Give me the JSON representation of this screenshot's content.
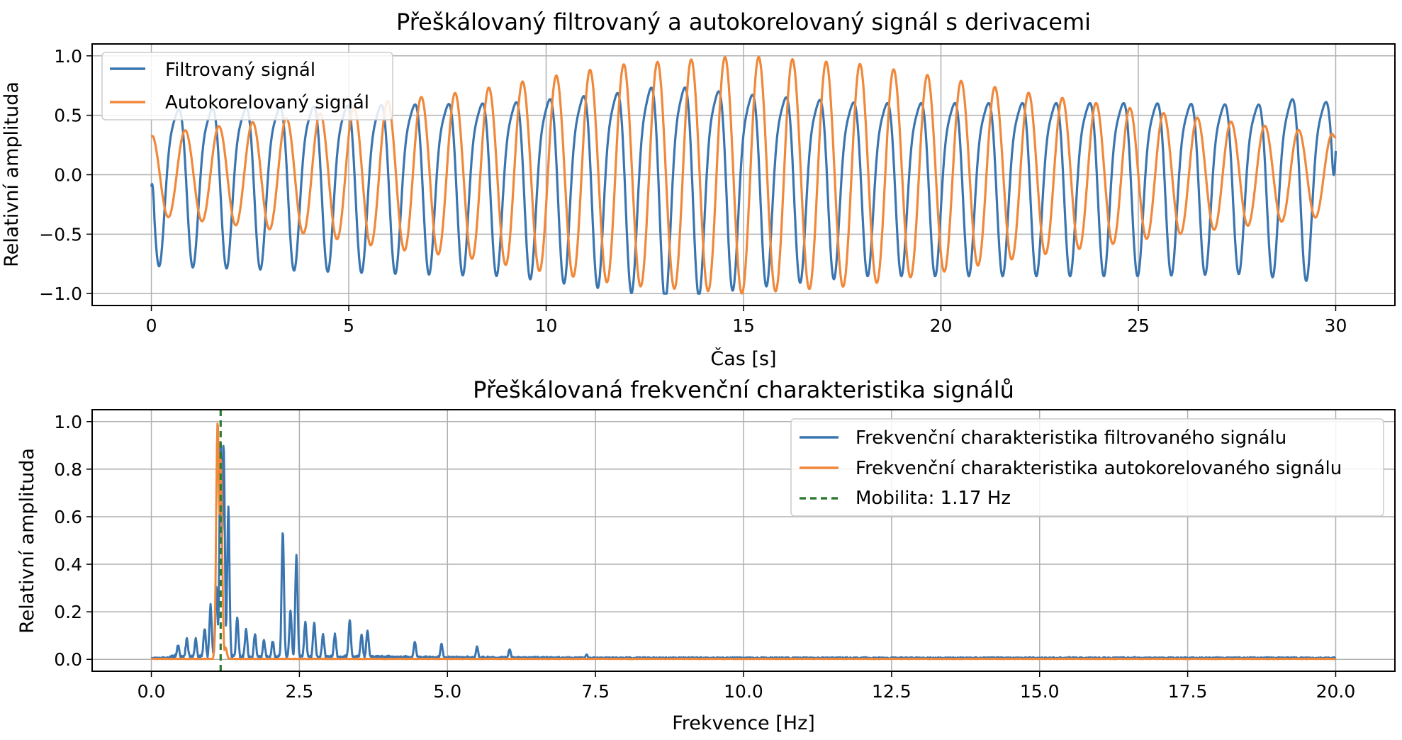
{
  "chart_data": [
    {
      "type": "line",
      "title": "Přeškálovaný filtrovaný a autokorelovaný signál s derivacemi",
      "xlabel": "Čas [s]",
      "ylabel": "Relativní amplituda",
      "xlim": [
        -1.5,
        31.5
      ],
      "ylim": [
        -1.1,
        1.1
      ],
      "xticks": [
        0,
        5,
        10,
        15,
        20,
        25,
        30
      ],
      "xtick_labels": [
        "0",
        "5",
        "10",
        "15",
        "20",
        "25",
        "30"
      ],
      "yticks": [
        -1.0,
        -0.5,
        0.0,
        0.5,
        1.0
      ],
      "ytick_labels": [
        "−1.0",
        "−0.5",
        "0.0",
        "0.5",
        "1.0"
      ],
      "grid": true,
      "legend_position": "upper-left",
      "series": [
        {
          "name": "Filtrovaný signál",
          "color": "#3a75b0",
          "kind": "oscillation",
          "x_range": [
            0,
            30
          ],
          "frequency_hz": 1.17,
          "phase": 1.6,
          "env": [
            [
              0,
              0.72
            ],
            [
              3,
              0.75
            ],
            [
              6,
              0.78
            ],
            [
              9,
              0.8
            ],
            [
              12,
              0.92
            ],
            [
              13,
              1.0
            ],
            [
              15,
              0.9
            ],
            [
              18,
              0.8
            ],
            [
              22,
              0.8
            ],
            [
              25,
              0.8
            ],
            [
              28,
              0.78
            ],
            [
              29,
              0.85
            ],
            [
              30,
              0.8
            ]
          ],
          "offset": 0.0,
          "harmonic": 0.22,
          "start_value": -0.1,
          "end_value": 0.2
        },
        {
          "name": "Autokorelovaný signál",
          "color": "#f0883a",
          "kind": "oscillation",
          "x_range": [
            0,
            30
          ],
          "frequency_hz": 1.17,
          "phase": 0.0,
          "env": [
            [
              0,
              0.34
            ],
            [
              2,
              0.42
            ],
            [
              4,
              0.5
            ],
            [
              6,
              0.62
            ],
            [
              8,
              0.7
            ],
            [
              10,
              0.82
            ],
            [
              12,
              0.93
            ],
            [
              15,
              1.0
            ],
            [
              18,
              0.93
            ],
            [
              20,
              0.82
            ],
            [
              22,
              0.7
            ],
            [
              24,
              0.6
            ],
            [
              26,
              0.5
            ],
            [
              28,
              0.42
            ],
            [
              30,
              0.34
            ]
          ],
          "offset": 0.0,
          "harmonic": 0.0,
          "start_value": 0.32,
          "end_value": 0.32
        }
      ]
    },
    {
      "type": "line",
      "title": "Přeškálovaná frekvenční charakteristika signálů",
      "xlabel": "Frekvence [Hz]",
      "ylabel": "Relativní amplituda",
      "xlim": [
        -1.0,
        21.0
      ],
      "ylim": [
        -0.05,
        1.05
      ],
      "xticks": [
        0,
        2.5,
        5,
        7.5,
        10,
        12.5,
        15,
        17.5,
        20
      ],
      "xtick_labels": [
        "0.0",
        "2.5",
        "5.0",
        "7.5",
        "10.0",
        "12.5",
        "15.0",
        "17.5",
        "20.0"
      ],
      "yticks": [
        0,
        0.2,
        0.4,
        0.6,
        0.8,
        1.0
      ],
      "ytick_labels": [
        "0.0",
        "0.2",
        "0.4",
        "0.6",
        "0.8",
        "1.0"
      ],
      "grid": true,
      "legend_position": "upper-right",
      "series": [
        {
          "name": "Frekvenční charakteristika filtrovaného signálu",
          "color": "#3a75b0",
          "kind": "spectrum",
          "x_range": [
            0,
            20
          ],
          "peaks": [
            [
              0.45,
              0.05
            ],
            [
              0.6,
              0.08
            ],
            [
              0.75,
              0.08
            ],
            [
              0.9,
              0.12
            ],
            [
              1.0,
              0.22
            ],
            [
              1.1,
              0.3
            ],
            [
              1.17,
              0.92
            ],
            [
              1.22,
              0.9
            ],
            [
              1.3,
              0.63
            ],
            [
              1.45,
              0.17
            ],
            [
              1.6,
              0.12
            ],
            [
              1.75,
              0.1
            ],
            [
              1.9,
              0.07
            ],
            [
              2.05,
              0.07
            ],
            [
              2.22,
              0.53
            ],
            [
              2.35,
              0.2
            ],
            [
              2.45,
              0.43
            ],
            [
              2.6,
              0.15
            ],
            [
              2.75,
              0.15
            ],
            [
              2.9,
              0.1
            ],
            [
              3.1,
              0.1
            ],
            [
              3.35,
              0.16
            ],
            [
              3.55,
              0.1
            ],
            [
              3.65,
              0.12
            ],
            [
              4.45,
              0.07
            ],
            [
              4.9,
              0.06
            ],
            [
              5.5,
              0.05
            ],
            [
              6.05,
              0.04
            ],
            [
              7.35,
              0.02
            ],
            [
              15.5,
              0.01
            ],
            [
              16.6,
              0.01
            ]
          ],
          "floor": 0.006
        },
        {
          "name": "Frekvenční charakteristika autokorelovaného signálu",
          "color": "#f0883a",
          "kind": "spectrum",
          "x_range": [
            0,
            20
          ],
          "peaks": [
            [
              1.12,
              1.0
            ],
            [
              1.17,
              0.85
            ],
            [
              1.25,
              0.05
            ]
          ],
          "floor": 0.002
        },
        {
          "name": "Mobilita: 1.17 Hz",
          "color": "#2e7d32",
          "kind": "vline",
          "x": 1.17
        }
      ]
    }
  ]
}
